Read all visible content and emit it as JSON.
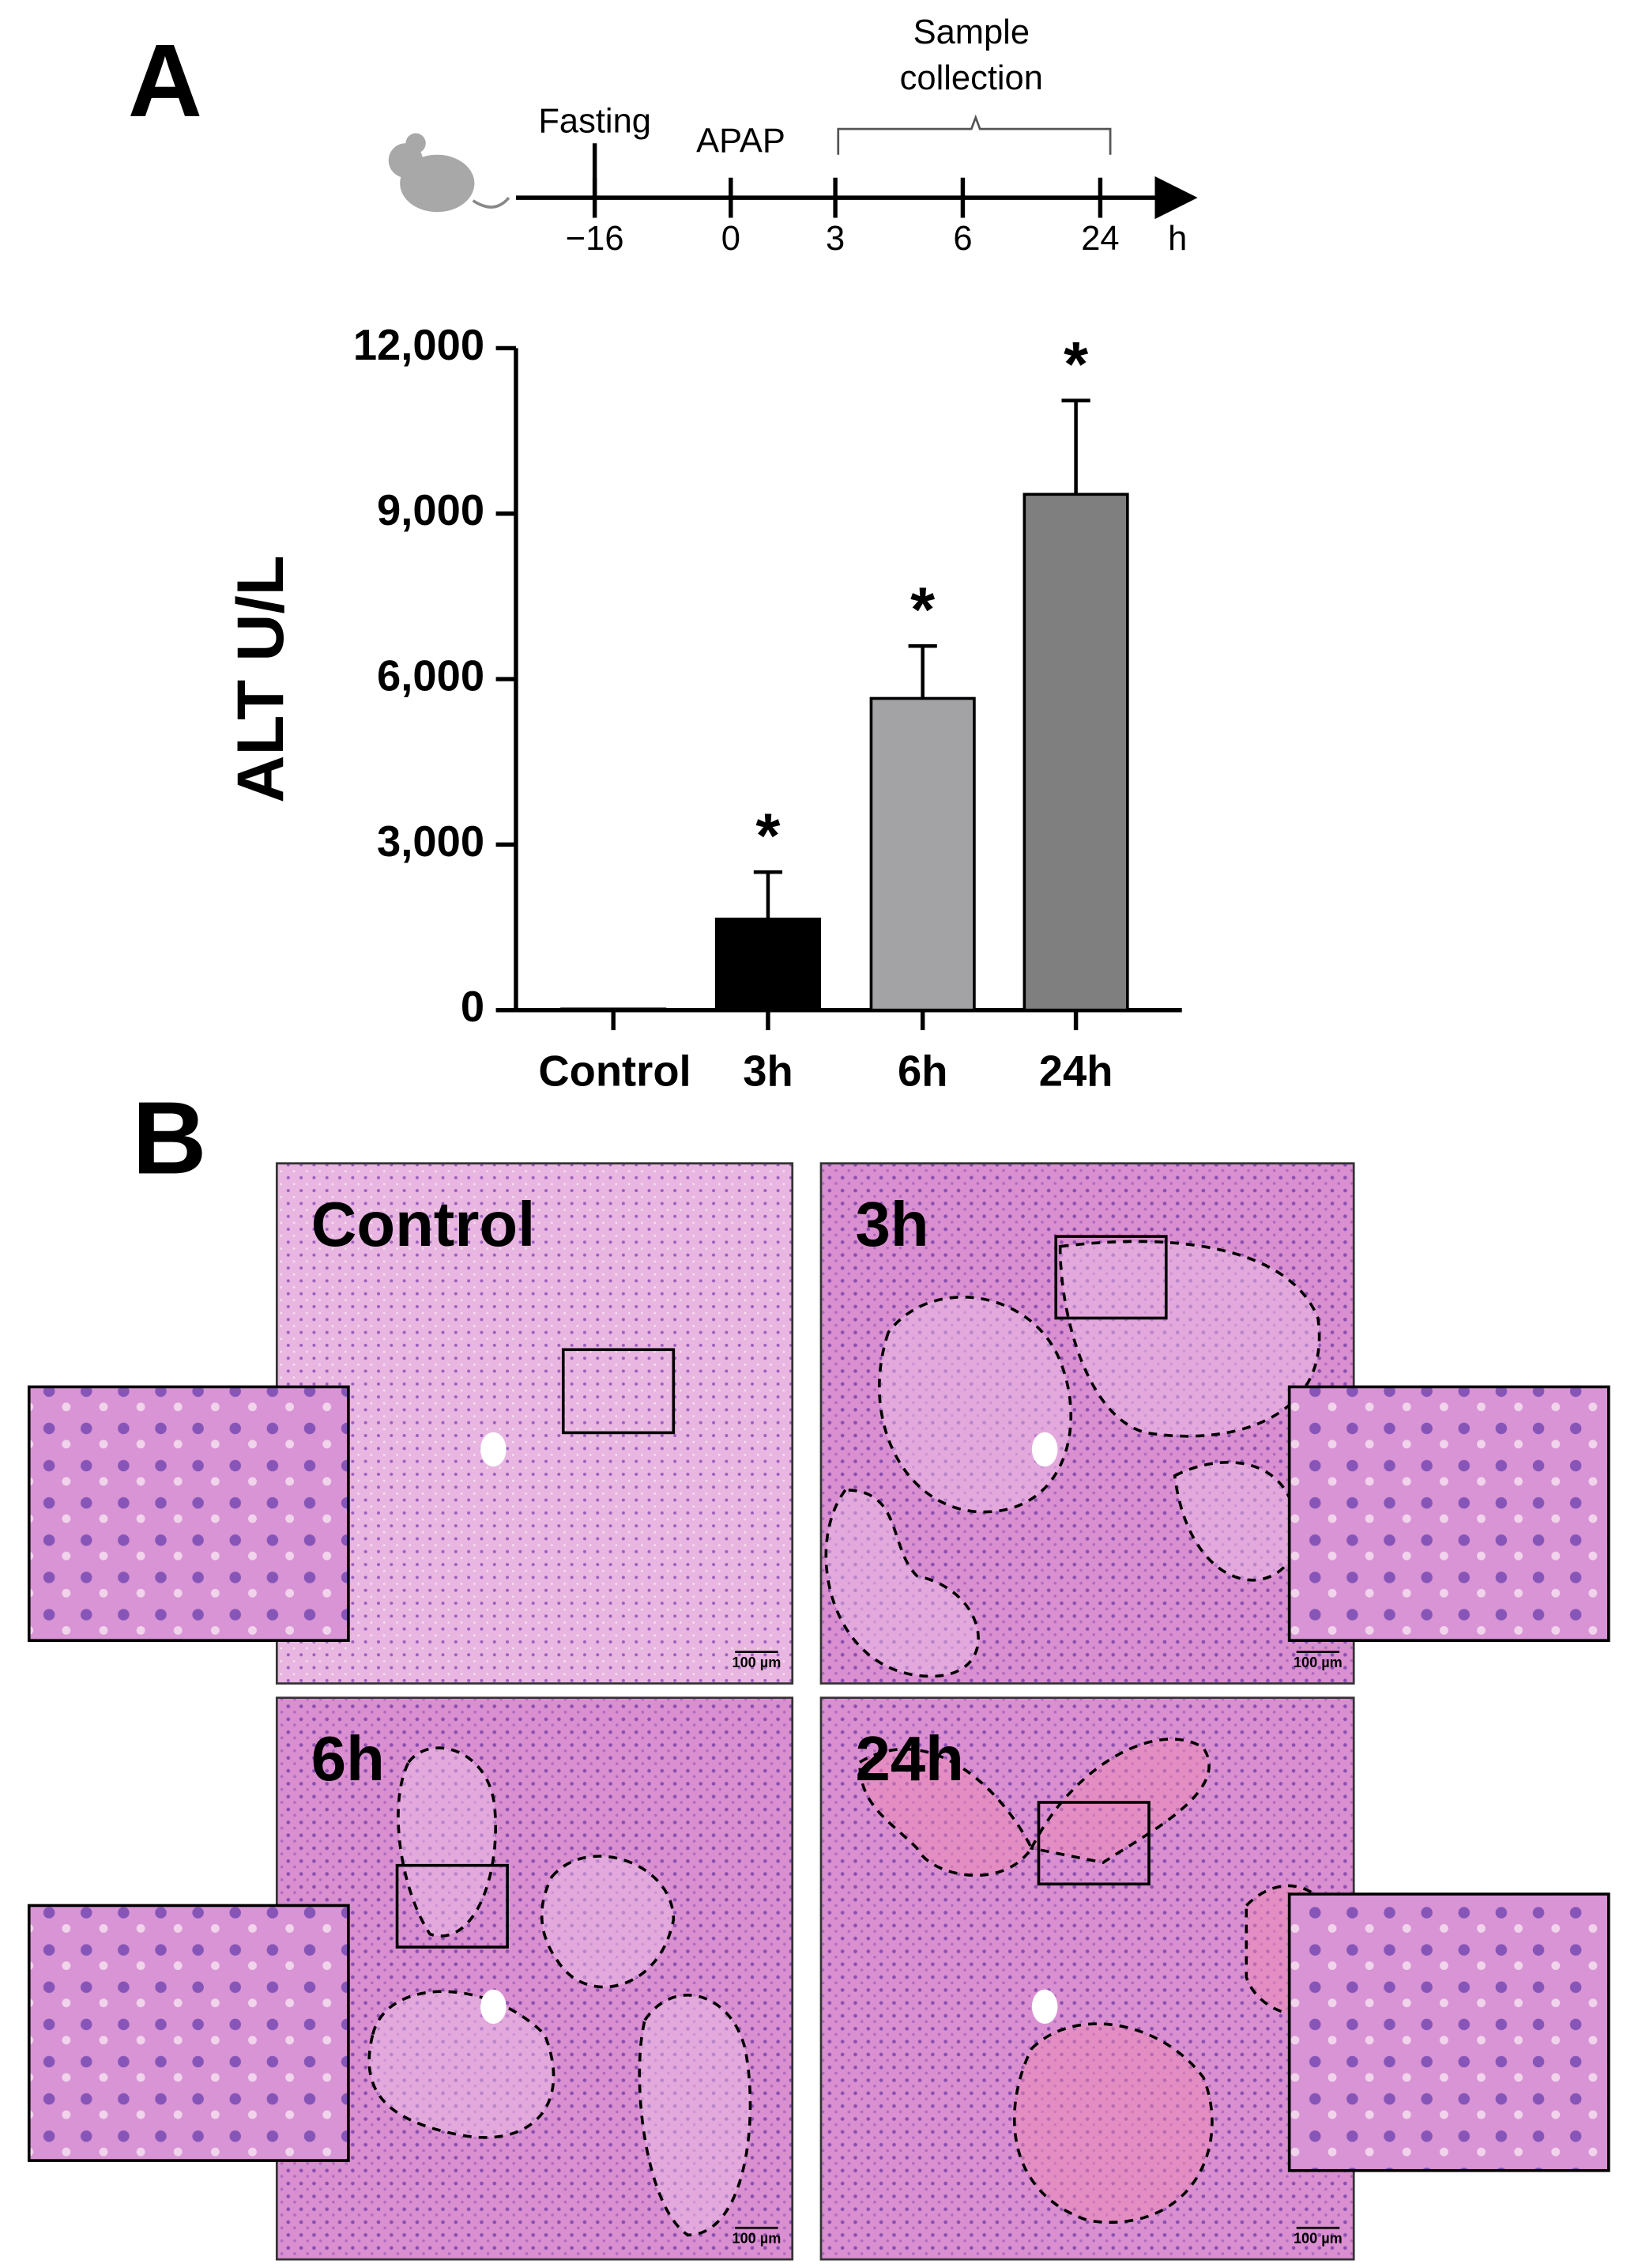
{
  "panel_labels": [
    "A",
    "B"
  ],
  "timeline": {
    "events": [
      "Fasting",
      "APAP"
    ],
    "collection": [
      "Sample",
      "collection"
    ],
    "ticks": [
      {
        "value": -16,
        "label": "−16"
      },
      0,
      3,
      6,
      24
    ],
    "unit": "h"
  },
  "chart_data": {
    "type": "bar",
    "ylabel": "ALT U/L",
    "categories": [
      "Control",
      "3h",
      "6h",
      "24h"
    ],
    "values": [
      20,
      1650,
      5650,
      9350
    ],
    "errors": [
      0,
      850,
      950,
      1700
    ],
    "colors": [
      "#000000",
      "#000000",
      "#a3a3a6",
      "#7f7f7f"
    ],
    "annotations": [
      "*",
      "*",
      "*"
    ],
    "ylim": [
      0,
      12000
    ],
    "yticks": [
      0,
      {
        "value": 3000,
        "label": "3,000"
      },
      {
        "value": 6000,
        "label": "6,000"
      },
      {
        "value": 9000,
        "label": "9,000"
      },
      {
        "value": 12000,
        "label": "12,000"
      }
    ]
  },
  "histology": [
    {
      "label": "Control",
      "scale": "100 µm"
    },
    {
      "label": "3h",
      "scale": "100 µm"
    },
    {
      "label": "6h",
      "scale": "100 µm"
    },
    {
      "label": "24h",
      "scale": "100 µm"
    }
  ]
}
